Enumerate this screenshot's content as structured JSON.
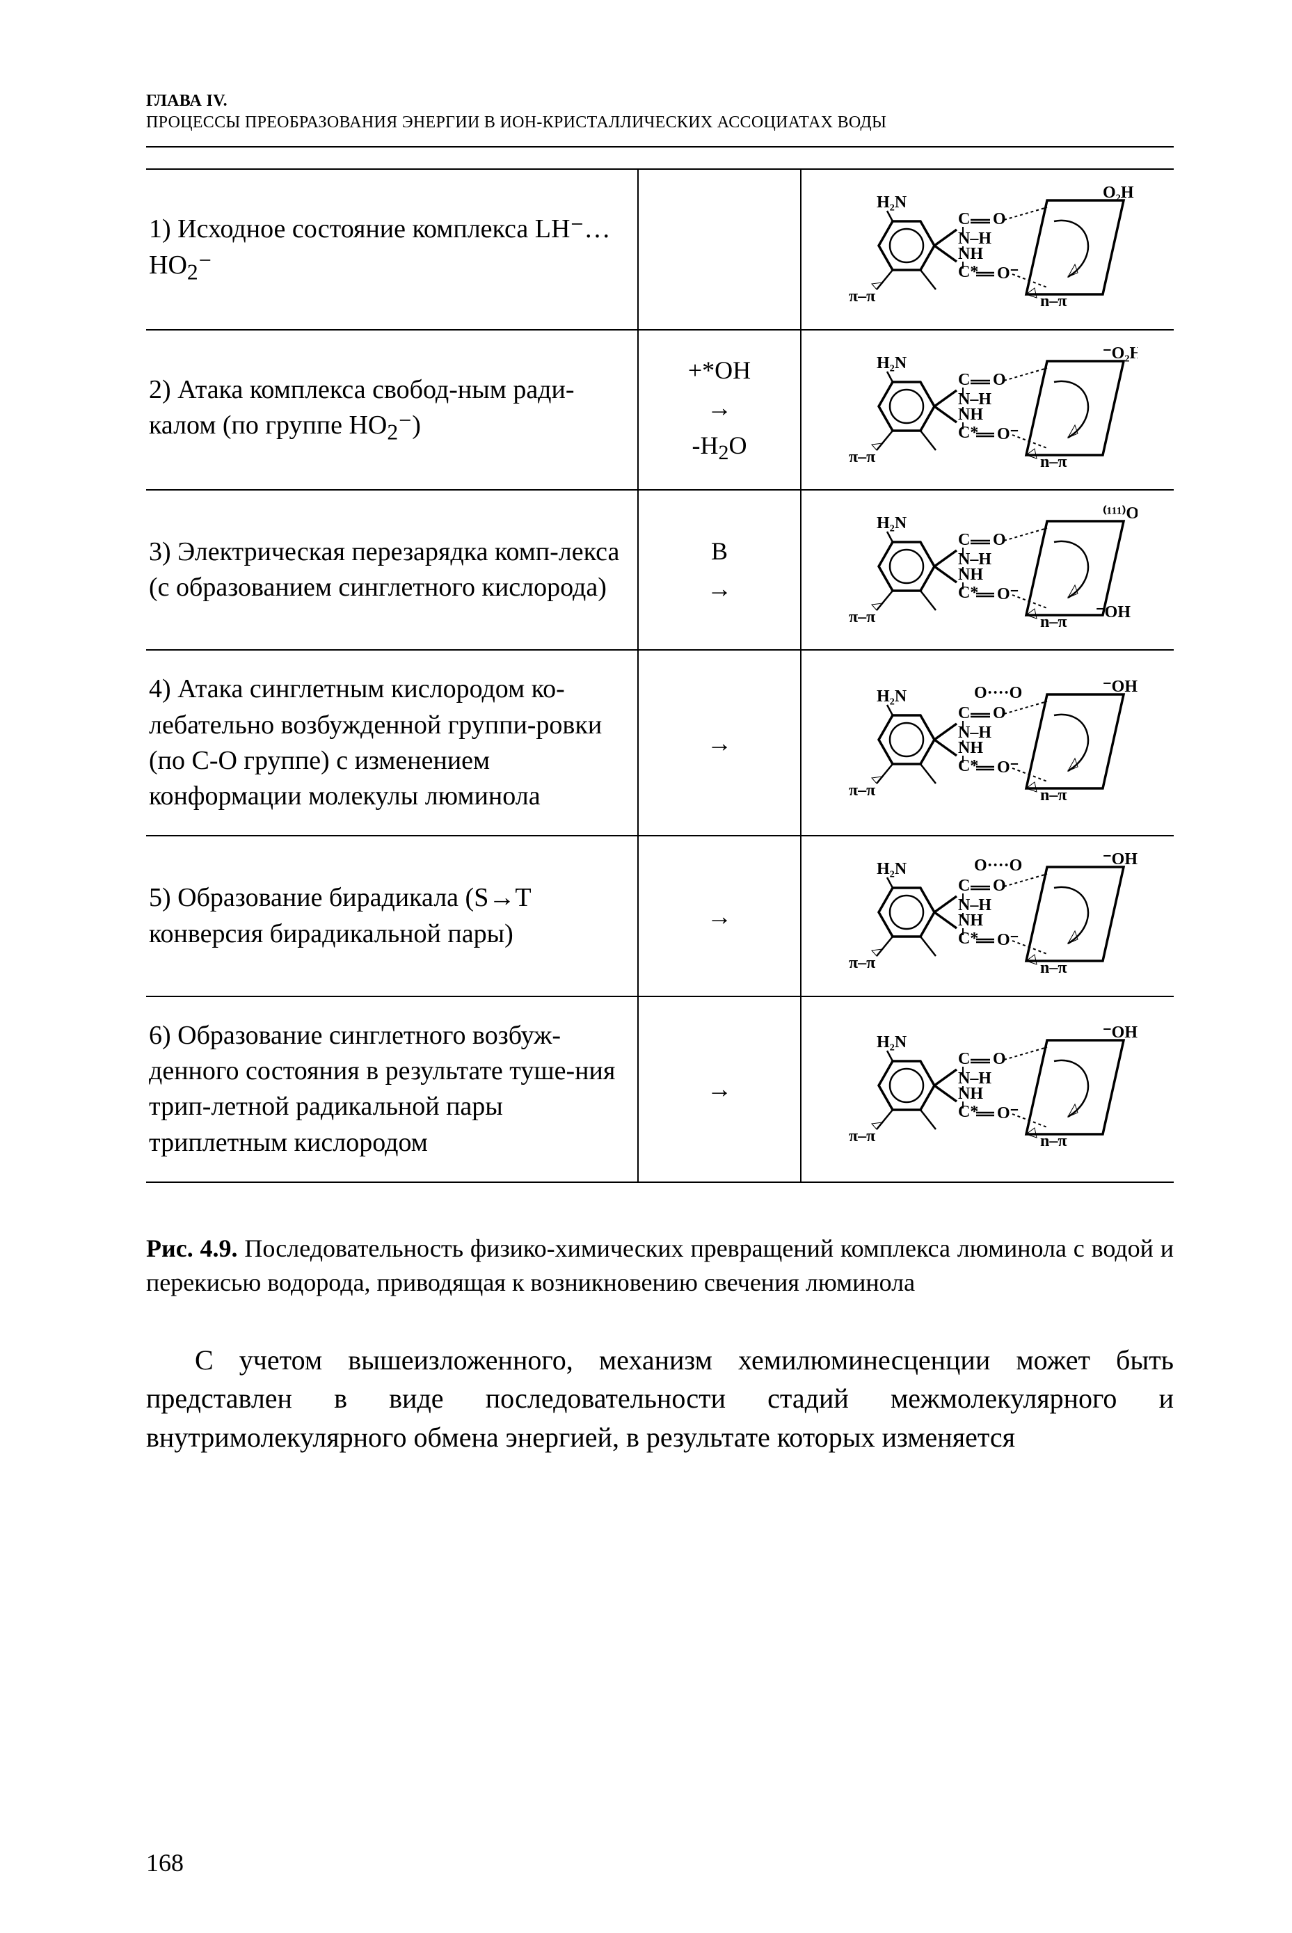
{
  "header": {
    "chapter": "ГЛАВА IV.",
    "title": "ПРОЦЕССЫ ПРЕОБРАЗОВАНИЯ ЭНЕРГИИ В ИОН-КРИСТАЛЛИЧЕСКИХ АССОЦИАТАХ ВОДЫ"
  },
  "table": {
    "rows": [
      {
        "desc_html": "1) Исходное состояние комплекса LH⁻…HO<sub>2</sub>⁻",
        "rx_html": "",
        "top_right": "O₂H",
        "extra": ""
      },
      {
        "desc_html": "2) Атака комплекса свобод-ным ради-калом (по группе HO<sub>2</sub>⁻)",
        "rx_html": "+*OH<br>→<br>-H<sub>2</sub>O",
        "top_right": "⁻O₂H",
        "extra": ""
      },
      {
        "desc_html": "3) Электрическая перезарядка комп-лекса (с образованием синглетного кислорода)",
        "rx_html": "B<br>→",
        "top_right": "⁽¹¹¹⁾O₂",
        "extra": "OH"
      },
      {
        "desc_html": "4) Атака синглетным кислородом ко-лебательно возбужденной группи-ровки (по С-О группе) с изменением конформации молекулы люминола",
        "rx_html": "→",
        "top_right": "⁻OH",
        "extra": "OO"
      },
      {
        "desc_html": "5) Образование бирадикала (S→T конверсия бирадикальной пары)",
        "rx_html": "→",
        "top_right": "⁻OH",
        "extra": "OO"
      },
      {
        "desc_html": "6) Образование синглетного возбуж-денного состояния в результате туше-ния трип-летной радикальной пары триплетным кислородом",
        "rx_html": "→",
        "top_right": "⁻OH",
        "extra": ""
      }
    ]
  },
  "caption": {
    "lead": "Рис. 4.9.",
    "text": " Последовательность физико-химических превращений комплекса люминола с водой и перекисью водорода, приводящая к возникновению свечения люминола"
  },
  "body": "С учетом вышеизложенного, механизм хемилюминесценции может быть представлен в виде последовательности стадий межмолекулярного и внутримолекулярного обмена энергией, в результате которых изменяется",
  "page_number": "168"
}
